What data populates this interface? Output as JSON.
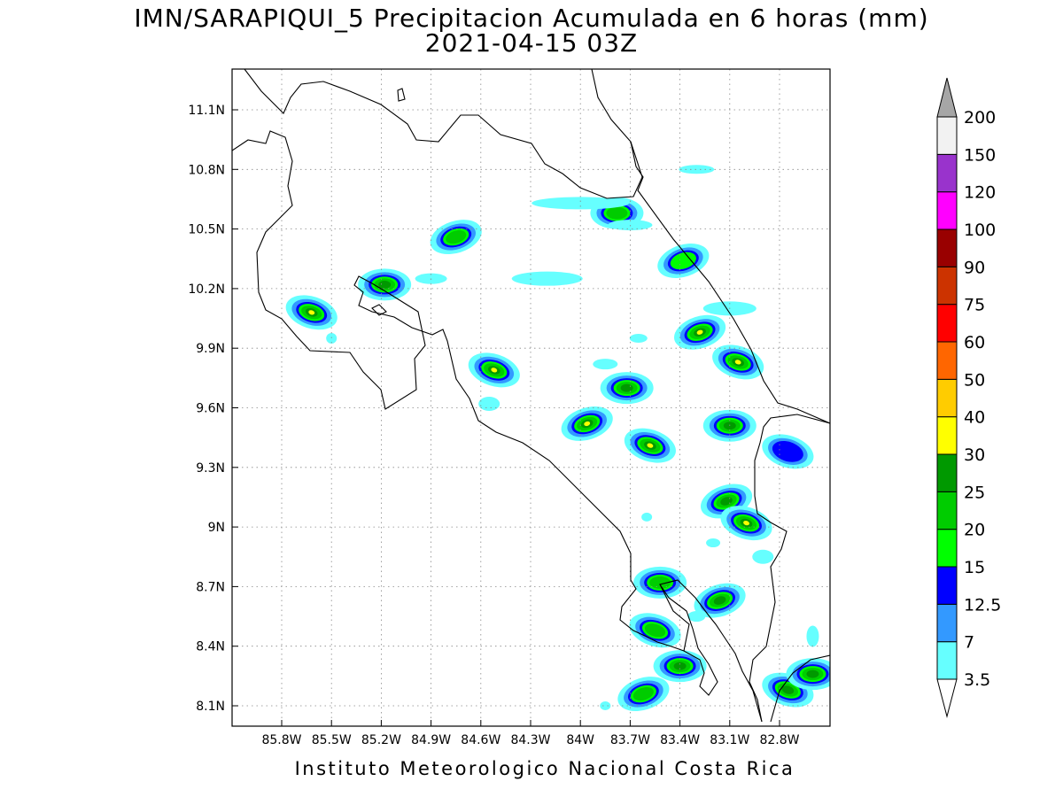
{
  "title": {
    "line1": "IMN/SARAPIQUI_5 Precipitacion Acumulada en 6 horas (mm)",
    "line2": "2021-04-15 03Z"
  },
  "footer": "Instituto Meteorologico Nacional Costa Rica",
  "map": {
    "lon_range": [
      -86.0,
      -83.0
    ],
    "lat_range": [
      8.0,
      11.3
    ],
    "x_ticks": [
      {
        "value": -85.8,
        "label": "85.8W"
      },
      {
        "value": -85.5,
        "label": "85.5W"
      },
      {
        "value": -85.2,
        "label": "85.2W"
      },
      {
        "value": -84.9,
        "label": "84.9W"
      },
      {
        "value": -84.6,
        "label": "84.6W"
      },
      {
        "value": -84.3,
        "label": "84.3W"
      },
      {
        "value": -84.0,
        "label": "84W"
      },
      {
        "value": -83.7,
        "label": "83.7W"
      },
      {
        "value": -83.4,
        "label": "83.4W"
      },
      {
        "value": -83.1,
        "label": "83.1W"
      },
      {
        "value": -82.8,
        "label": "82.8W"
      }
    ],
    "y_ticks": [
      {
        "value": 11.1,
        "label": "11.1N"
      },
      {
        "value": 10.8,
        "label": "10.8N"
      },
      {
        "value": 10.5,
        "label": "10.5N"
      },
      {
        "value": 10.2,
        "label": "10.2N"
      },
      {
        "value": 9.9,
        "label": "9.9N"
      },
      {
        "value": 9.6,
        "label": "9.6N"
      },
      {
        "value": 9.3,
        "label": "9.3N"
      },
      {
        "value": 9.0,
        "label": "9N"
      },
      {
        "value": 8.7,
        "label": "8.7N"
      },
      {
        "value": 8.4,
        "label": "8.4N"
      },
      {
        "value": 8.1,
        "label": "8.1N"
      }
    ],
    "grid": "dotted"
  },
  "colorbar": {
    "levels": [
      {
        "label": "3.5",
        "color": "#ffffff"
      },
      {
        "label": "7",
        "color": "#66ffff"
      },
      {
        "label": "12.5",
        "color": "#3399ff"
      },
      {
        "label": "15",
        "color": "#0000ff"
      },
      {
        "label": "20",
        "color": "#00ff00"
      },
      {
        "label": "25",
        "color": "#00cc00"
      },
      {
        "label": "30",
        "color": "#009900"
      },
      {
        "label": "40",
        "color": "#ffff00"
      },
      {
        "label": "50",
        "color": "#ffcc00"
      },
      {
        "label": "60",
        "color": "#ff6600"
      },
      {
        "label": "75",
        "color": "#ff0000"
      },
      {
        "label": "90",
        "color": "#cc3300"
      },
      {
        "label": "100",
        "color": "#990000"
      },
      {
        "label": "120",
        "color": "#ff00ff"
      },
      {
        "label": "150",
        "color": "#9933cc"
      },
      {
        "label": "200",
        "color": "#f2f2f2"
      }
    ],
    "top_triangle_color": "#a6a6a6",
    "bottom_triangle_color": "#ffffff"
  },
  "blobs": [
    {
      "lon": -85.62,
      "lat": 10.08,
      "max": 30
    },
    {
      "lon": -85.18,
      "lat": 10.22,
      "max": 25
    },
    {
      "lon": -84.75,
      "lat": 10.46,
      "max": 20
    },
    {
      "lon": -84.52,
      "lat": 9.79,
      "max": 40
    },
    {
      "lon": -83.78,
      "lat": 10.58,
      "max": 20
    },
    {
      "lon": -83.28,
      "lat": 9.98,
      "max": 40
    },
    {
      "lon": -83.05,
      "lat": 9.83,
      "max": 40
    },
    {
      "lon": -83.72,
      "lat": 9.7,
      "max": 25
    },
    {
      "lon": -83.96,
      "lat": 9.52,
      "max": 40
    },
    {
      "lon": -83.58,
      "lat": 9.41,
      "max": 40
    },
    {
      "lon": -83.1,
      "lat": 9.51,
      "max": 25
    },
    {
      "lon": -83.12,
      "lat": 9.13,
      "max": 25
    },
    {
      "lon": -83.0,
      "lat": 9.02,
      "max": 40
    },
    {
      "lon": -83.52,
      "lat": 8.72,
      "max": 20
    },
    {
      "lon": -83.16,
      "lat": 8.63,
      "max": 25
    },
    {
      "lon": -83.55,
      "lat": 8.48,
      "max": 20
    },
    {
      "lon": -83.4,
      "lat": 8.3,
      "max": 25
    },
    {
      "lon": -83.62,
      "lat": 8.16,
      "max": 20
    },
    {
      "lon": -82.75,
      "lat": 8.18,
      "max": 25
    },
    {
      "lon": -82.6,
      "lat": 8.26,
      "max": 25
    },
    {
      "lon": -83.38,
      "lat": 10.34,
      "max": 15
    },
    {
      "lon": -82.75,
      "lat": 9.38,
      "max": 12.5
    }
  ]
}
